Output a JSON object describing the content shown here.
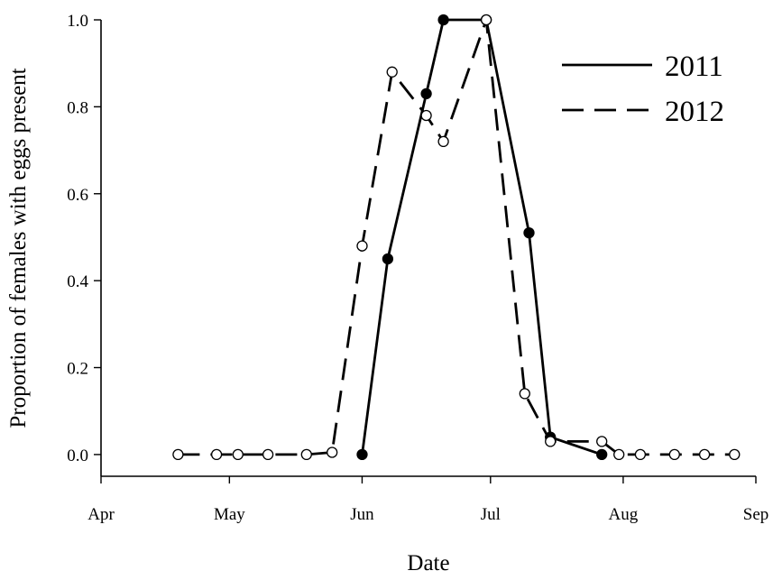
{
  "chart_data": {
    "type": "line",
    "title": "",
    "xlabel": "Date",
    "ylabel": "Proportion of females with eggs present",
    "x_ticks": [
      "Apr",
      "May",
      "Jun",
      "Jul",
      "Aug",
      "Sep"
    ],
    "y_ticks": [
      "0.0",
      "0.2",
      "0.4",
      "0.6",
      "0.8",
      "1.0"
    ],
    "ylim": [
      -0.05,
      1.0
    ],
    "grid": false,
    "legend_position": "top-right",
    "series": [
      {
        "name": "2011",
        "line_style": "solid",
        "marker": "filled-circle",
        "color": "#000000",
        "points": [
          {
            "date": "Jun 1",
            "y": 0.0
          },
          {
            "date": "Jun 7",
            "y": 0.45
          },
          {
            "date": "Jun 16",
            "y": 0.83
          },
          {
            "date": "Jun 20",
            "y": 1.0
          },
          {
            "date": "Jun 30",
            "y": 1.0
          },
          {
            "date": "Jul 10",
            "y": 0.51
          },
          {
            "date": "Jul 15",
            "y": 0.04
          },
          {
            "date": "Jul 27",
            "y": 0.0
          }
        ]
      },
      {
        "name": "2012",
        "line_style": "dashed",
        "marker": "open-circle",
        "color": "#000000",
        "points": [
          {
            "date": "Apr 19",
            "y": 0.0
          },
          {
            "date": "Apr 28",
            "y": 0.0
          },
          {
            "date": "May 3",
            "y": 0.0
          },
          {
            "date": "May 10",
            "y": 0.0
          },
          {
            "date": "May 19",
            "y": 0.0
          },
          {
            "date": "May 25",
            "y": 0.005
          },
          {
            "date": "Jun 1",
            "y": 0.48
          },
          {
            "date": "Jun 8",
            "y": 0.88
          },
          {
            "date": "Jun 16",
            "y": 0.78
          },
          {
            "date": "Jun 20",
            "y": 0.72
          },
          {
            "date": "Jun 30",
            "y": 1.0
          },
          {
            "date": "Jul 9",
            "y": 0.14
          },
          {
            "date": "Jul 15",
            "y": 0.03
          },
          {
            "date": "Jul 27",
            "y": 0.03
          },
          {
            "date": "Jul 31",
            "y": 0.0
          },
          {
            "date": "Aug 5",
            "y": 0.0
          },
          {
            "date": "Aug 13",
            "y": 0.0
          },
          {
            "date": "Aug 20",
            "y": 0.0
          },
          {
            "date": "Aug 27",
            "y": 0.0
          }
        ]
      }
    ]
  }
}
